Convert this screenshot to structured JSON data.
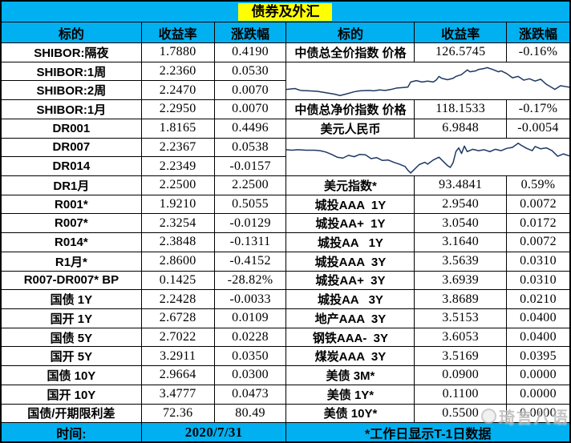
{
  "title": "债券及外汇",
  "headers": [
    "标的",
    "收益率",
    "涨跌幅",
    "标的",
    "收益率",
    "涨跌幅"
  ],
  "left_rows": [
    {
      "label": "SHIBOR:隔夜",
      "yield": "1.7880",
      "change": "0.4190"
    },
    {
      "label": "SHIBOR:1周",
      "yield": "2.2360",
      "change": "0.0530"
    },
    {
      "label": "SHIBOR:2周",
      "yield": "2.2470",
      "change": "0.0070"
    },
    {
      "label": "SHIBOR:1月",
      "yield": "2.2950",
      "change": "0.0070"
    },
    {
      "label": "DR001",
      "yield": "1.8165",
      "change": "0.4496"
    },
    {
      "label": "DR007",
      "yield": "2.2367",
      "change": "0.0538"
    },
    {
      "label": "DR014",
      "yield": "2.2349",
      "change": "-0.0157"
    },
    {
      "label": "DR1月",
      "yield": "2.2500",
      "change": "2.2500"
    },
    {
      "label": "R001*",
      "yield": "1.9210",
      "change": "0.5055"
    },
    {
      "label": "R007*",
      "yield": "2.3254",
      "change": "-0.0129"
    },
    {
      "label": "R014*",
      "yield": "2.3848",
      "change": "-0.1311"
    },
    {
      "label": "R1月*",
      "yield": "2.8600",
      "change": "-0.4152"
    },
    {
      "label": "R007-DR007* BP",
      "yield": "0.1425",
      "change": "-28.82%"
    },
    {
      "label": "国债 1Y",
      "yield": "2.2428",
      "change": "-0.0033"
    },
    {
      "label": "国开 1Y",
      "yield": "2.6728",
      "change": "0.0109"
    },
    {
      "label": "国债 5Y",
      "yield": "2.7022",
      "change": "0.0228"
    },
    {
      "label": "国开 5Y",
      "yield": "3.2911",
      "change": "0.0350"
    },
    {
      "label": "国债 10Y",
      "yield": "2.9664",
      "change": "0.0300"
    },
    {
      "label": "国开 10Y",
      "yield": "3.4777",
      "change": "0.0473"
    },
    {
      "label": "国债/开期限利差",
      "yield": "72.36",
      "change": "80.49"
    }
  ],
  "right_rows": [
    {
      "row": 0,
      "label": "中债总全价指数 价格",
      "yield": "126.5745",
      "change": "-0.16%"
    },
    {
      "row": 3,
      "label": "中债总净价指数 价格",
      "yield": "118.1533",
      "change": "-0.17%"
    },
    {
      "row": 4,
      "label": "美元人民币",
      "yield": "6.9848",
      "change": "-0.0054"
    },
    {
      "row": 7,
      "label": "美元指数*",
      "yield": "93.4841",
      "change": "0.59%"
    },
    {
      "row": 8,
      "label": "城投AAA  1Y",
      "yield": "2.9540",
      "change": "0.0072"
    },
    {
      "row": 9,
      "label": "城投AA+  1Y",
      "yield": "3.0540",
      "change": "0.0172"
    },
    {
      "row": 10,
      "label": "城投AA   1Y",
      "yield": "3.1640",
      "change": "0.0072"
    },
    {
      "row": 11,
      "label": "城投AAA  3Y",
      "yield": "3.5639",
      "change": "0.0310"
    },
    {
      "row": 12,
      "label": "城投AA+  3Y",
      "yield": "3.6939",
      "change": "0.0310"
    },
    {
      "row": 13,
      "label": "城投AA   3Y",
      "yield": "3.8689",
      "change": "0.0210"
    },
    {
      "row": 14,
      "label": "地产AAA  3Y",
      "yield": "3.5153",
      "change": "0.0400"
    },
    {
      "row": 15,
      "label": "钢铁AAA-  3Y",
      "yield": "3.6053",
      "change": "0.0400"
    },
    {
      "row": 16,
      "label": "煤炭AAA  3Y",
      "yield": "3.5169",
      "change": "0.0395"
    },
    {
      "row": 17,
      "label": "美债 3M*",
      "yield": "0.0900",
      "change": "0.0000"
    },
    {
      "row": 18,
      "label": "美债 1Y*",
      "yield": "0.1100",
      "change": "0.0000"
    },
    {
      "row": 19,
      "label": "美债 10Y*",
      "yield": "0.5500",
      "change": "0.0000"
    }
  ],
  "sparklines": [
    {
      "name": "sparkline-bond-index",
      "row": 1,
      "span": 2,
      "chart": 0
    },
    {
      "name": "sparkline-usdcny",
      "row": 5,
      "span": 2,
      "chart": 1
    }
  ],
  "footer": {
    "time_label": "时间:",
    "date": "2020/7/31",
    "note": "*工作日显示T-1日数据"
  },
  "watermark": {
    "text": "琦言八语"
  },
  "colors": {
    "header_bg": "#00B0F0",
    "title_highlight": "#FFFF00",
    "grid_border": "#000000",
    "cell_bg": "#FFFFFF",
    "spark_line": "#1F3864",
    "text": "#000000"
  },
  "chart_data": [
    {
      "type": "line",
      "title": "中债总全价指数 走势 (无坐标轴迷你图)",
      "legend": [],
      "grid": false,
      "axes_labeled": false,
      "x_range": [
        0,
        100
      ],
      "y_range": [
        0,
        40
      ],
      "y_inverted": true,
      "points": [
        [
          0,
          29
        ],
        [
          3,
          28
        ],
        [
          5,
          30
        ],
        [
          8,
          30.5
        ],
        [
          11,
          31
        ],
        [
          14,
          32.5
        ],
        [
          17,
          34
        ],
        [
          19,
          35.5
        ],
        [
          21,
          34
        ],
        [
          24,
          31.5
        ],
        [
          26,
          30.5
        ],
        [
          29,
          30
        ],
        [
          31,
          30.5
        ],
        [
          33,
          29.5
        ],
        [
          35,
          30
        ],
        [
          37,
          29
        ],
        [
          39,
          27.5
        ],
        [
          41,
          27
        ],
        [
          43,
          26.5
        ],
        [
          44,
          21
        ],
        [
          46,
          19.5
        ],
        [
          48,
          21
        ],
        [
          50,
          20
        ],
        [
          52,
          21
        ],
        [
          53,
          19
        ],
        [
          54,
          15
        ],
        [
          55,
          17
        ],
        [
          57,
          18.5
        ],
        [
          59,
          17
        ],
        [
          60,
          15
        ],
        [
          62,
          13
        ],
        [
          63,
          10.5
        ],
        [
          64,
          8
        ],
        [
          65,
          10
        ],
        [
          67,
          9
        ],
        [
          68,
          7.5
        ],
        [
          70,
          6.5
        ],
        [
          71,
          5.5
        ],
        [
          73,
          7.5
        ],
        [
          75,
          10
        ],
        [
          76,
          9
        ],
        [
          78,
          12
        ],
        [
          80,
          16.5
        ],
        [
          82,
          15
        ],
        [
          84,
          19
        ],
        [
          86,
          17.5
        ],
        [
          88,
          20
        ],
        [
          90,
          18
        ],
        [
          92,
          23.5
        ],
        [
          94,
          27
        ],
        [
          95,
          29
        ],
        [
          97,
          25
        ],
        [
          99,
          26
        ],
        [
          100,
          26.5
        ]
      ]
    },
    {
      "type": "line",
      "title": "美元人民币 走势 (无坐标轴迷你图)",
      "legend": [],
      "grid": false,
      "axes_labeled": false,
      "x_range": [
        0,
        100
      ],
      "y_range": [
        0,
        40
      ],
      "y_inverted": true,
      "points": [
        [
          0,
          12
        ],
        [
          2,
          12.5
        ],
        [
          4,
          12
        ],
        [
          7,
          12.5
        ],
        [
          10,
          12.5
        ],
        [
          12,
          13
        ],
        [
          14,
          14.5
        ],
        [
          16,
          17
        ],
        [
          18,
          20
        ],
        [
          20,
          21
        ],
        [
          22,
          18
        ],
        [
          24,
          19.5
        ],
        [
          26,
          17
        ],
        [
          28,
          17.5
        ],
        [
          30,
          21.5
        ],
        [
          32,
          20.5
        ],
        [
          34,
          23.5
        ],
        [
          36,
          23
        ],
        [
          38,
          25.5
        ],
        [
          40,
          27.5
        ],
        [
          42,
          30
        ],
        [
          43,
          34
        ],
        [
          44,
          37
        ],
        [
          45,
          34
        ],
        [
          47,
          28
        ],
        [
          49,
          25.5
        ],
        [
          50,
          27.5
        ],
        [
          52,
          23
        ],
        [
          54,
          20
        ],
        [
          55,
          23
        ],
        [
          57,
          29
        ],
        [
          58,
          31
        ],
        [
          59,
          26
        ],
        [
          60,
          14
        ],
        [
          61,
          10
        ],
        [
          62,
          16
        ],
        [
          63,
          8
        ],
        [
          64,
          14
        ],
        [
          66,
          11.5
        ],
        [
          68,
          13
        ],
        [
          70,
          12
        ],
        [
          72,
          14
        ],
        [
          74,
          11.5
        ],
        [
          76,
          13
        ],
        [
          78,
          10.5
        ],
        [
          80,
          9.5
        ],
        [
          82,
          5
        ],
        [
          83,
          7
        ],
        [
          85,
          10.5
        ],
        [
          87,
          13
        ],
        [
          88,
          8.5
        ],
        [
          90,
          11
        ],
        [
          92,
          10
        ],
        [
          94,
          13
        ],
        [
          96,
          19
        ],
        [
          98,
          16.5
        ],
        [
          100,
          18.5
        ]
      ]
    }
  ]
}
